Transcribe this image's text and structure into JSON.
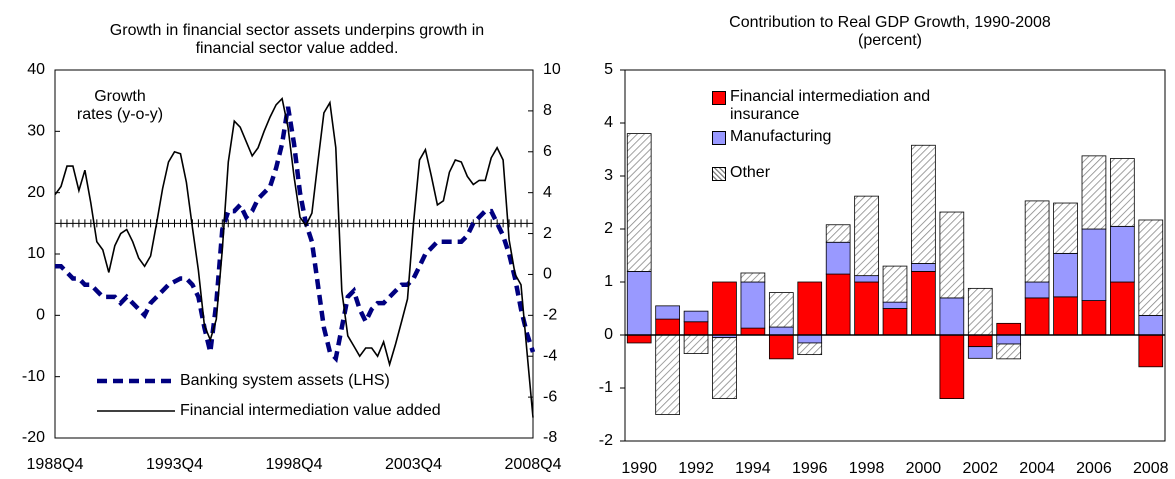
{
  "chart_data": [
    {
      "type": "line",
      "title": "Growth in financial sector assets underpins growth in financial sector value added.",
      "annotation": "Growth rates (y-o-y)",
      "categories": [
        "1988Q4",
        null,
        null,
        null,
        null,
        null,
        null,
        null,
        null,
        null,
        null,
        null,
        null,
        null,
        null,
        null,
        null,
        null,
        null,
        null,
        "1993Q4",
        null,
        null,
        null,
        null,
        null,
        null,
        null,
        null,
        null,
        null,
        null,
        null,
        null,
        null,
        null,
        null,
        null,
        null,
        null,
        "1998Q4",
        null,
        null,
        null,
        null,
        null,
        null,
        null,
        null,
        null,
        null,
        null,
        null,
        null,
        null,
        null,
        null,
        null,
        null,
        null,
        "2003Q4",
        null,
        null,
        null,
        null,
        null,
        null,
        null,
        null,
        null,
        null,
        null,
        null,
        null,
        null,
        null,
        null,
        null,
        null,
        null,
        "2008Q4"
      ],
      "ylim": [
        -20,
        40
      ],
      "yticks": [
        -20,
        -10,
        0,
        10,
        20,
        30,
        40
      ],
      "y2lim": [
        -8,
        10
      ],
      "y2ticks": [
        -8,
        -6,
        -4,
        -2,
        0,
        2,
        4,
        6,
        8,
        10
      ],
      "x_axis_at": 15,
      "legend": "lower left",
      "series": [
        {
          "name": "Banking system assets (LHS)",
          "color": "#000080",
          "line_style": "dashed",
          "values": [
            8,
            8,
            7,
            6,
            6,
            5,
            5,
            4,
            3,
            3,
            3,
            2,
            3,
            2,
            1,
            0,
            2,
            3,
            4,
            5,
            5.5,
            6,
            6,
            5,
            3,
            -2,
            -6,
            2,
            14,
            17,
            17,
            18,
            16,
            17,
            19,
            20,
            21,
            24,
            28,
            34,
            28,
            20,
            15,
            12,
            5,
            -2,
            -6,
            -7,
            -2,
            3,
            4,
            1,
            -1,
            1,
            2,
            2,
            3,
            4,
            5,
            5,
            6,
            8,
            10,
            11,
            12,
            12,
            12,
            12,
            12,
            13,
            15,
            16,
            17,
            17,
            15,
            13,
            10,
            6,
            1,
            -3,
            -6
          ]
        },
        {
          "name": "Financial intermediation value added",
          "color": "#000000",
          "line_style": "solid",
          "axis": "y2",
          "values": [
            3.9,
            4.3,
            5.3,
            5.3,
            4.1,
            5.1,
            3.5,
            1.6,
            1.2,
            0.1,
            1.4,
            2.0,
            2.2,
            1.6,
            0.8,
            0.4,
            0.9,
            2.5,
            4.2,
            5.5,
            6.0,
            5.9,
            4.5,
            2.3,
            0.2,
            -2.5,
            -3.2,
            -2.2,
            1.2,
            5.5,
            7.5,
            7.2,
            6.5,
            5.8,
            6.2,
            7.0,
            7.7,
            8.3,
            8.6,
            7.2,
            4.8,
            2.8,
            2.4,
            3.0,
            5.5,
            7.9,
            8.4,
            6.2,
            -0.8,
            -3.0,
            -3.5,
            -4.0,
            -3.6,
            -3.6,
            -4.0,
            -3.3,
            -4.4,
            -3.4,
            -2.3,
            -1.2,
            2.5,
            5.6,
            6.1,
            4.8,
            3.4,
            3.6,
            5.0,
            5.6,
            5.5,
            4.8,
            4.4,
            4.6,
            4.6,
            5.7,
            6.2,
            5.6,
            1.7,
            0.0,
            -0.5,
            -3.8,
            -7.0
          ]
        }
      ]
    },
    {
      "type": "bar",
      "stacked": true,
      "title": "Contribution to Real GDP Growth, 1990-2008",
      "subtitle": "(percent)",
      "categories": [
        "1990",
        null,
        "1992",
        null,
        "1994",
        null,
        "1996",
        null,
        "1998",
        null,
        "2000",
        null,
        "2002",
        null,
        "2004",
        null,
        "2006",
        null,
        "2008"
      ],
      "ylim": [
        -2,
        5
      ],
      "yticks": [
        -2,
        -1,
        0,
        1,
        2,
        3,
        4,
        5
      ],
      "legend": "upper left",
      "series": [
        {
          "name": "Financial intermediation and insurance",
          "color": "#ff0000",
          "values": [
            -0.15,
            0.3,
            0.25,
            1.0,
            0.13,
            -0.45,
            1.0,
            1.15,
            1.0,
            0.5,
            1.2,
            -1.2,
            -0.22,
            0.22,
            0.7,
            0.72,
            0.65,
            1.0,
            -0.6
          ]
        },
        {
          "name": "Manufacturing",
          "color": "#9999ff",
          "values": [
            1.2,
            0.25,
            0.2,
            -0.05,
            0.87,
            0.15,
            -0.15,
            0.6,
            0.12,
            0.12,
            0.15,
            0.7,
            -0.22,
            -0.17,
            0.3,
            0.82,
            1.35,
            1.05,
            0.37
          ]
        },
        {
          "name": "Other",
          "color": "#888888",
          "fill_pattern": "hatched",
          "values": [
            2.6,
            -1.5,
            -0.35,
            -1.15,
            0.17,
            0.65,
            -0.22,
            0.33,
            1.5,
            0.68,
            2.23,
            1.62,
            0.88,
            -0.28,
            1.53,
            0.95,
            1.38,
            1.28,
            1.8
          ]
        }
      ]
    }
  ]
}
